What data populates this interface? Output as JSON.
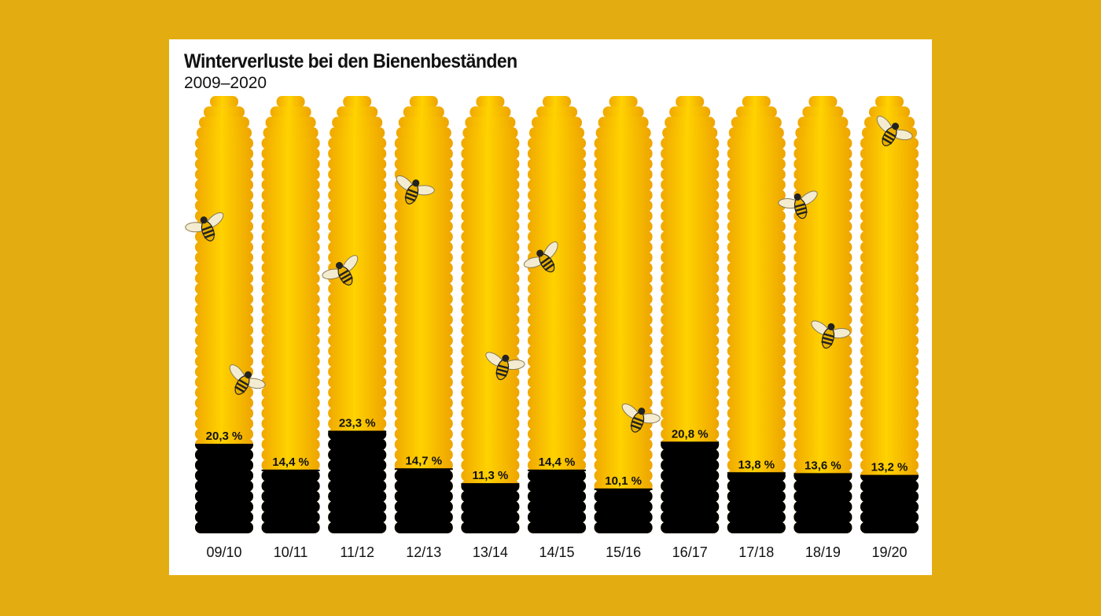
{
  "chart_data": {
    "type": "bar",
    "title": "Winterverluste bei den Bienenbeständen",
    "subtitle": "2009–2020",
    "categories": [
      "09/10",
      "10/11",
      "11/12",
      "12/13",
      "13/14",
      "14/15",
      "15/16",
      "16/17",
      "17/18",
      "18/19",
      "19/20"
    ],
    "values": [
      20.3,
      14.4,
      23.3,
      14.7,
      11.3,
      14.4,
      10.1,
      20.8,
      13.8,
      13.6,
      13.2
    ],
    "value_labels": [
      "20,3 %",
      "14,4 %",
      "23,3 %",
      "14,7 %",
      "11,3 %",
      "14,4 %",
      "10,1 %",
      "20,8 %",
      "13,8 %",
      "13,6 %",
      "13,2 %"
    ],
    "ylim": [
      0,
      100
    ],
    "grid": false,
    "legend": "none",
    "colors": {
      "loss": "#000000",
      "hive": "#f5b800",
      "hive_light": "#ffd200",
      "background": "#e3ac10"
    },
    "decoration_icon": "bee-icon"
  }
}
